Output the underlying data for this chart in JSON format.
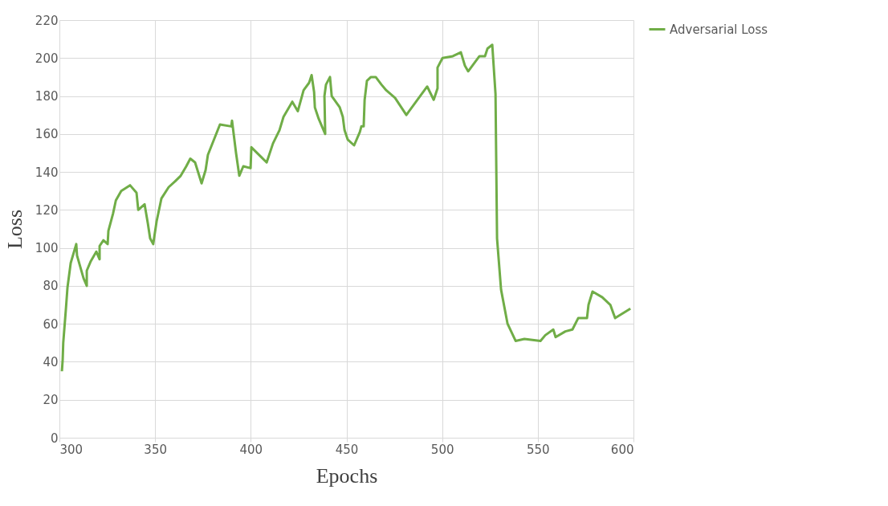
{
  "chart_data": {
    "type": "line",
    "xlabel": "Epochs",
    "ylabel": "Loss",
    "xlim": [
      300,
      600
    ],
    "xticks": [
      300,
      350,
      400,
      450,
      500,
      550,
      600
    ],
    "ylim": [
      0,
      220
    ],
    "yticks": [
      0,
      20,
      40,
      60,
      80,
      100,
      120,
      140,
      160,
      180,
      200,
      220
    ],
    "grid": true,
    "legend": "right",
    "marker": "none",
    "line_style": "solid",
    "series": [
      {
        "name": "Adversarial Loss",
        "color": "#70ad47",
        "x": [
          301.3,
          301.7,
          302,
          303.4,
          304.2,
          305.9,
          308.8,
          309.2,
          312.6,
          314.3,
          314.3,
          316.4,
          319.3,
          321,
          321,
          323,
          325.2,
          325.6,
          328,
          329.5,
          332.3,
          336.9,
          340.3,
          341.2,
          344.5,
          346.2,
          347.4,
          349,
          350.8,
          353.3,
          357.1,
          360.4,
          363.4,
          366.3,
          368.4,
          370.9,
          374.3,
          376.4,
          377.6,
          383.9,
          389.8,
          390.2,
          392.3,
          394,
          396.1,
          399.9,
          400.3,
          405.3,
          408.3,
          411.6,
          415,
          417.1,
          421.7,
          424.6,
          427.6,
          430.5,
          431.8,
          433.1,
          433.5,
          435.5,
          438.9,
          438.5,
          439.3,
          441.4,
          442.3,
          446.5,
          448.1,
          449,
          450.7,
          454,
          457,
          457.8,
          459,
          459.5,
          460.7,
          462.8,
          465.3,
          468.3,
          470.8,
          475.4,
          481.3,
          492.2,
          495.6,
          497.6,
          497.6,
          500.2,
          505.6,
          509.8,
          511.9,
          513.6,
          519.5,
          522.4,
          523.7,
          526.2,
          527.9,
          528.7,
          530.8,
          534.2,
          538.4,
          543,
          551.4,
          553.9,
          558.1,
          559.3,
          564.4,
          568.1,
          571.1,
          575.7,
          576.5,
          578.6,
          583.7,
          587.9,
          590.4,
          598.4
        ],
        "values": [
          35,
          41,
          50,
          68,
          79,
          92,
          102,
          96,
          84,
          80,
          88,
          93,
          98,
          94,
          101,
          104,
          102,
          109,
          118,
          125,
          130,
          133,
          129,
          120,
          123,
          113,
          105,
          102,
          114,
          126,
          132,
          135,
          138,
          143,
          147,
          145,
          134,
          141,
          149,
          165,
          164,
          167,
          150,
          138,
          143,
          142,
          153,
          148,
          145,
          155,
          162,
          169,
          177,
          172,
          183,
          187,
          191,
          182,
          174,
          168,
          160,
          180,
          186,
          190,
          180,
          174,
          169,
          162,
          157,
          154,
          161,
          164,
          164,
          178,
          188,
          190,
          190,
          186,
          183,
          179,
          170,
          185,
          178,
          184,
          195,
          200,
          201,
          203,
          196,
          193,
          201,
          201,
          205,
          207,
          181,
          105,
          78,
          60,
          51,
          52,
          51,
          54,
          57,
          53,
          56,
          57,
          63,
          63,
          70,
          77,
          74,
          70,
          63,
          68
        ]
      }
    ]
  }
}
